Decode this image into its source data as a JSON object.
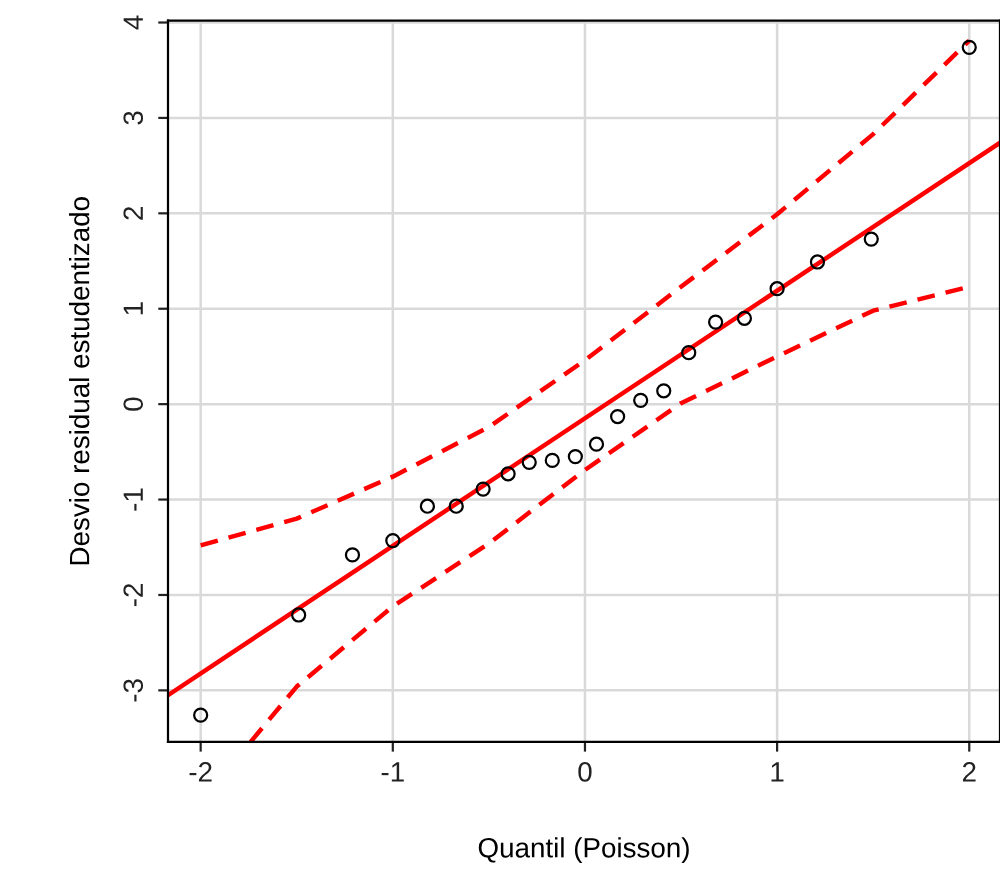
{
  "chart_data": {
    "type": "scatter",
    "xlabel": "Quantil (Poisson)",
    "ylabel": "Desvio residual estudentizado",
    "xlim": [
      -2.17,
      2.16
    ],
    "ylim": [
      -3.54,
      4.02
    ],
    "xticks": [
      -2,
      -1,
      0,
      1,
      2
    ],
    "yticks": [
      -3,
      -2,
      -1,
      0,
      1,
      2,
      3,
      4
    ],
    "grid": true,
    "series": [
      {
        "color": "#000000",
        "marker": "circle",
        "x": [
          -2.0,
          -1.49,
          -1.21,
          -1.0,
          -0.82,
          -0.67,
          -0.53,
          -0.4,
          -0.29,
          -0.17,
          -0.05,
          0.06,
          0.17,
          0.29,
          0.41,
          0.54,
          0.68,
          0.83,
          1.0,
          1.21,
          1.49,
          2.0
        ],
        "values": [
          -3.26,
          -2.21,
          -1.58,
          -1.43,
          -1.07,
          -1.07,
          -0.89,
          -0.73,
          -0.61,
          -0.59,
          -0.55,
          -0.42,
          -0.13,
          0.04,
          0.14,
          0.54,
          0.86,
          0.9,
          1.21,
          1.49,
          1.73,
          3.74
        ]
      },
      {
        "type": "line",
        "color": "#ff0000",
        "line_style": "solid",
        "x": [
          -2.17,
          2.16
        ],
        "values": [
          -3.05,
          2.74
        ]
      },
      {
        "type": "line",
        "color": "#ff0000",
        "line_style": "dashed",
        "x": [
          -2.0,
          -1.5,
          -1.0,
          -0.5,
          0.0,
          0.5,
          1.0,
          1.5,
          2.0
        ],
        "values": [
          -1.48,
          -1.2,
          -0.76,
          -0.24,
          0.46,
          1.23,
          1.99,
          2.83,
          3.81
        ]
      },
      {
        "type": "line",
        "color": "#ff0000",
        "line_style": "dashed",
        "x": [
          -1.74,
          -1.5,
          -1.0,
          -0.5,
          0.0,
          0.5,
          1.0,
          1.5,
          2.0
        ],
        "values": [
          -3.54,
          -2.96,
          -2.12,
          -1.46,
          -0.69,
          0.01,
          0.5,
          0.98,
          1.23
        ]
      }
    ]
  }
}
